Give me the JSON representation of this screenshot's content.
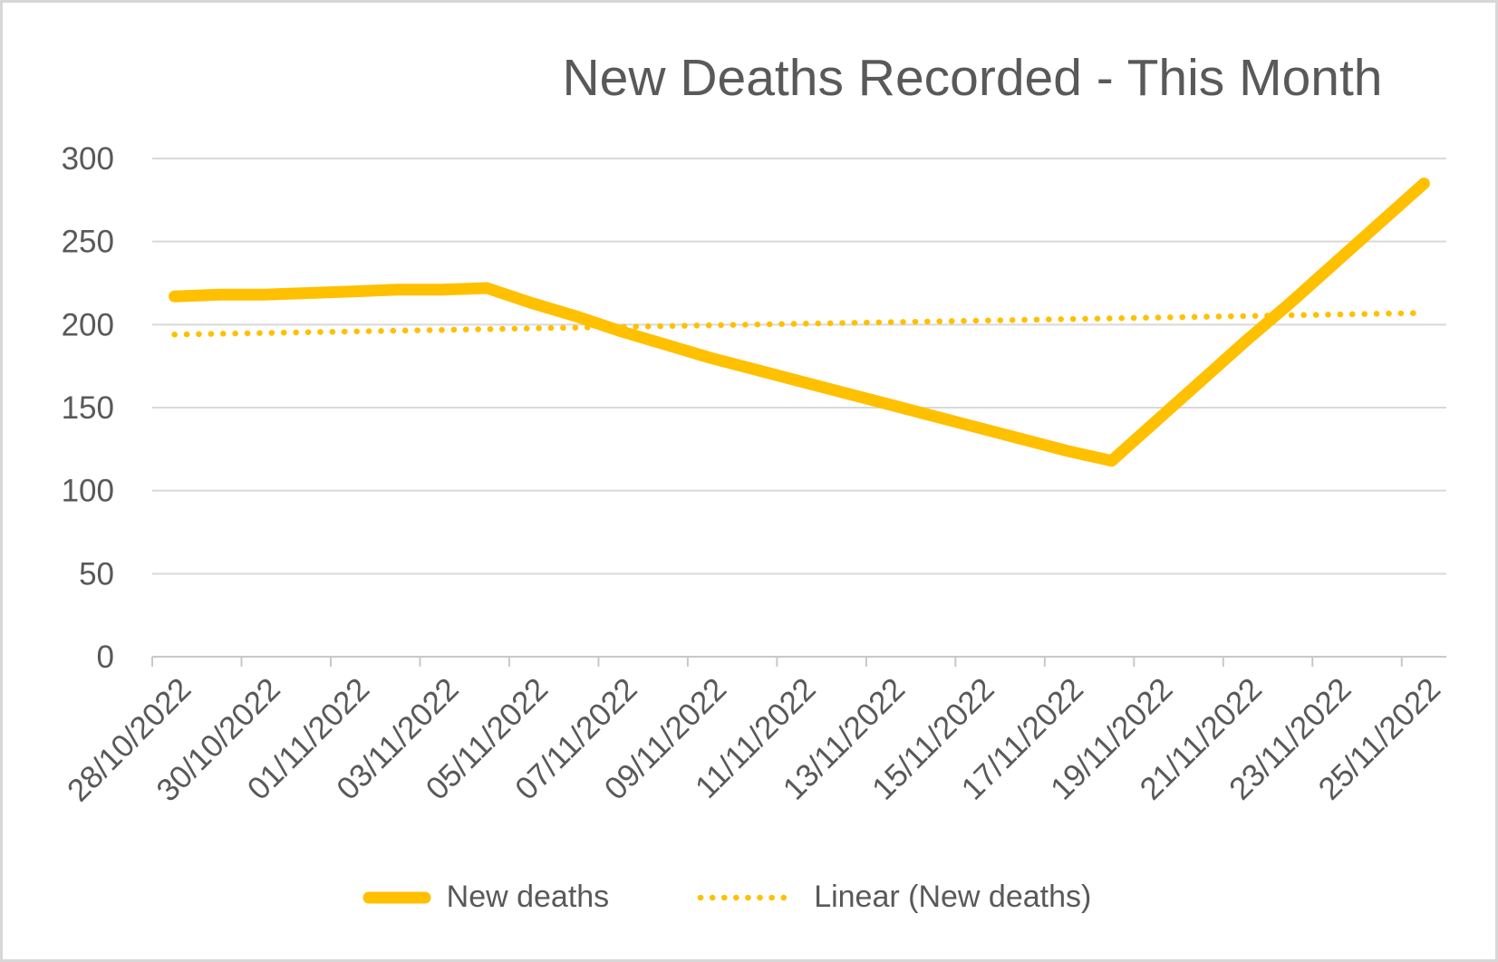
{
  "chart": {
    "title": "New Deaths Recorded - This Month"
  },
  "chart_data": {
    "type": "line",
    "title": "New Deaths Recorded - This Month",
    "categories": [
      "28/10/2022",
      "29/10/2022",
      "30/10/2022",
      "31/10/2022",
      "01/11/2022",
      "02/11/2022",
      "03/11/2022",
      "04/11/2022",
      "05/11/2022",
      "06/11/2022",
      "07/11/2022",
      "08/11/2022",
      "09/11/2022",
      "10/11/2022",
      "11/11/2022",
      "12/11/2022",
      "13/11/2022",
      "14/11/2022",
      "15/11/2022",
      "16/11/2022",
      "17/11/2022",
      "18/11/2022",
      "19/11/2022",
      "20/11/2022",
      "21/11/2022",
      "22/11/2022",
      "23/11/2022",
      "24/11/2022",
      "25/11/2022"
    ],
    "series": [
      {
        "name": "New deaths",
        "style": "solid",
        "color": "#FFC000",
        "values": [
          217,
          218,
          218,
          219,
          220,
          221,
          221,
          222,
          213,
          205,
          196,
          188,
          180,
          173,
          166,
          159,
          152,
          145,
          138,
          131,
          124,
          118,
          142,
          166,
          190,
          213,
          237,
          261,
          285
        ]
      }
    ],
    "trendline": {
      "label": "Linear (New deaths)",
      "for_series": "New deaths",
      "style": "dotted",
      "color": "#FFC000",
      "start_value": 194,
      "end_value": 207
    },
    "x_axis": {
      "tick_labels_shown": [
        "28/10/2022",
        "30/10/2022",
        "01/11/2022",
        "03/11/2022",
        "05/11/2022",
        "07/11/2022",
        "09/11/2022",
        "11/11/2022",
        "13/11/2022",
        "15/11/2022",
        "17/11/2022",
        "19/11/2022",
        "21/11/2022",
        "23/11/2022",
        "25/11/2022"
      ],
      "label_rotation_deg": -45,
      "label_interval_days": 2
    },
    "y_axis": {
      "min": 0,
      "max": 300,
      "tick_step": 50,
      "tick_labels": [
        "0",
        "50",
        "100",
        "150",
        "200",
        "250",
        "300"
      ]
    },
    "grid": "horizontal",
    "legend": {
      "position": "bottom",
      "entries": [
        "New deaths",
        "Linear (New deaths)"
      ]
    },
    "colors": {
      "series": "#FFC000",
      "text": "#595959",
      "gridline": "#D9D9D9",
      "axis": "#C9C9C9",
      "background": "#FFFFFF",
      "border": "#D7D7D7"
    }
  }
}
